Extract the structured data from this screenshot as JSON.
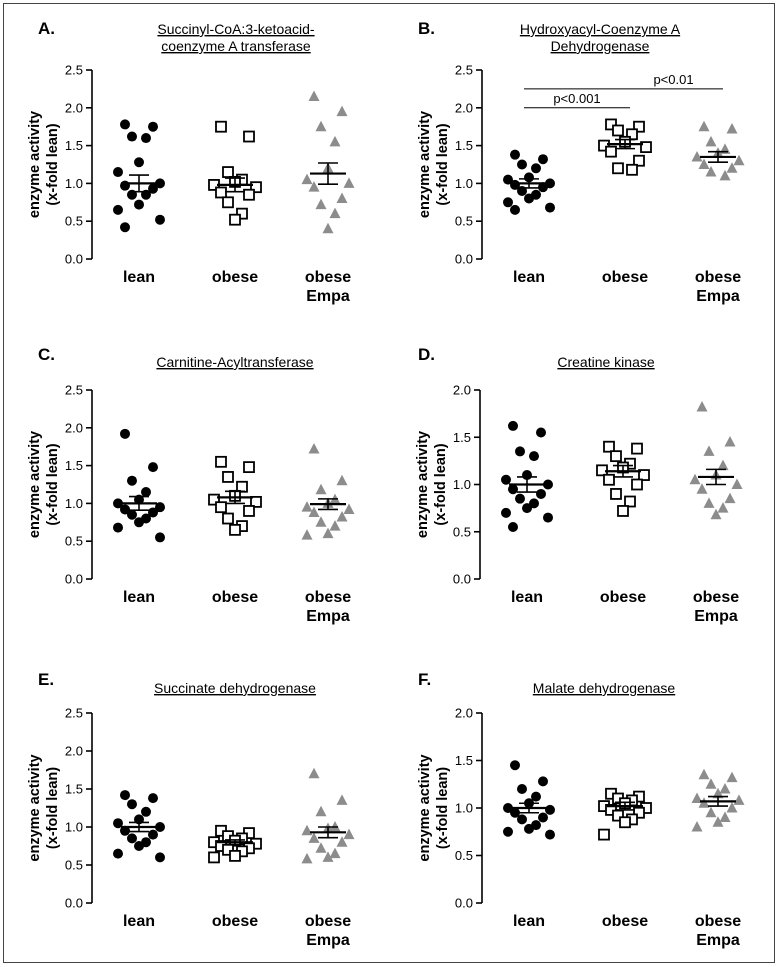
{
  "chart_data": [
    {
      "panel": "A.",
      "type": "scatter",
      "title_lines": [
        "Succinyl-CoA:3-ketoacid-",
        "coenzyme A transferase"
      ],
      "ylabel_lines": [
        "enzyme activity",
        "(x-fold lean)"
      ],
      "ylim": [
        0,
        2.5
      ],
      "yticks": [
        "0.0",
        "0.5",
        "1.0",
        "1.5",
        "2.0",
        "2.5"
      ],
      "categories": [
        [
          "lean"
        ],
        [
          "obese"
        ],
        [
          "obese",
          "Empa"
        ]
      ],
      "series": [
        {
          "name": "lean",
          "marker": "circle",
          "mean": 1.0,
          "sem": 0.11,
          "values": [
            1.78,
            1.75,
            1.62,
            1.6,
            1.28,
            1.15,
            1.0,
            0.97,
            0.93,
            0.85,
            0.85,
            0.72,
            0.65,
            0.52,
            0.42
          ]
        },
        {
          "name": "obese",
          "marker": "square",
          "mean": 0.98,
          "sem": 0.09,
          "values": [
            1.75,
            1.62,
            1.15,
            1.05,
            1.02,
            0.98,
            0.95,
            0.88,
            0.85,
            0.75,
            0.6,
            0.52
          ]
        },
        {
          "name": "obese Empa",
          "marker": "triangle",
          "mean": 1.13,
          "sem": 0.14,
          "values": [
            2.15,
            1.95,
            1.75,
            1.55,
            1.2,
            1.05,
            1.0,
            0.95,
            0.8,
            0.72,
            0.6,
            0.4
          ]
        }
      ],
      "significance": []
    },
    {
      "panel": "B.",
      "type": "scatter",
      "title_lines": [
        "Hydroxyacyl-Coenzyme A",
        "Dehydrogenase"
      ],
      "ylabel_lines": [
        "enzyme activity",
        "(x-fold lean)"
      ],
      "ylim": [
        0,
        2.5
      ],
      "yticks": [
        "0.0",
        "0.5",
        "1.0",
        "1.5",
        "2.0",
        "2.5"
      ],
      "categories": [
        [
          "lean"
        ],
        [
          "obese"
        ],
        [
          "obese",
          "Empa"
        ]
      ],
      "series": [
        {
          "name": "lean",
          "marker": "circle",
          "mean": 1.0,
          "sem": 0.06,
          "values": [
            1.38,
            1.32,
            1.25,
            1.2,
            1.08,
            1.05,
            1.0,
            0.98,
            0.95,
            0.9,
            0.85,
            0.8,
            0.75,
            0.68,
            0.65
          ]
        },
        {
          "name": "obese",
          "marker": "square",
          "mean": 1.52,
          "sem": 0.06,
          "values": [
            1.78,
            1.75,
            1.7,
            1.65,
            1.55,
            1.5,
            1.48,
            1.42,
            1.3,
            1.2,
            1.18
          ]
        },
        {
          "name": "obese Empa",
          "marker": "triangle",
          "mean": 1.35,
          "sem": 0.07,
          "values": [
            1.75,
            1.72,
            1.55,
            1.45,
            1.4,
            1.35,
            1.3,
            1.25,
            1.2,
            1.15,
            1.1
          ]
        }
      ],
      "significance": [
        {
          "from": 0,
          "to": 1,
          "label": "p<0.001",
          "y": 2.0
        },
        {
          "from": 0,
          "to": 2,
          "label": "p<0.01",
          "y": 2.25
        }
      ]
    },
    {
      "panel": "C.",
      "type": "scatter",
      "title_lines": [
        "Carnitine-Acyltransferase"
      ],
      "ylabel_lines": [
        "enzyme activity",
        "(x-fold lean)"
      ],
      "ylim": [
        0,
        2.5
      ],
      "yticks": [
        "0.0",
        "0.5",
        "1.0",
        "1.5",
        "2.0",
        "2.5"
      ],
      "categories": [
        [
          "lean"
        ],
        [
          "obese"
        ],
        [
          "obese",
          "Empa"
        ]
      ],
      "series": [
        {
          "name": "lean",
          "marker": "circle",
          "mean": 1.0,
          "sem": 0.09,
          "values": [
            1.92,
            1.48,
            1.3,
            1.15,
            1.05,
            1.0,
            0.95,
            0.92,
            0.88,
            0.85,
            0.8,
            0.75,
            0.68,
            0.55
          ]
        },
        {
          "name": "obese",
          "marker": "square",
          "mean": 1.08,
          "sem": 0.08,
          "values": [
            1.55,
            1.48,
            1.35,
            1.22,
            1.1,
            1.05,
            1.02,
            0.95,
            0.9,
            0.8,
            0.7,
            0.65
          ]
        },
        {
          "name": "obese Empa",
          "marker": "triangle",
          "mean": 0.99,
          "sem": 0.07,
          "values": [
            1.72,
            1.3,
            1.18,
            1.05,
            1.0,
            0.95,
            0.92,
            0.88,
            0.82,
            0.75,
            0.7,
            0.6,
            0.58
          ]
        }
      ],
      "significance": []
    },
    {
      "panel": "D.",
      "type": "scatter",
      "title_lines": [
        "Creatine kinase"
      ],
      "ylabel_lines": [
        "enzyme activity",
        "(x-fold lean)"
      ],
      "ylim": [
        0,
        2.0
      ],
      "yticks": [
        "0.0",
        "0.5",
        "1.0",
        "1.5",
        "2.0"
      ],
      "categories": [
        [
          "lean"
        ],
        [
          "obese"
        ],
        [
          "obese",
          "Empa"
        ]
      ],
      "series": [
        {
          "name": "lean",
          "marker": "circle",
          "mean": 1.0,
          "sem": 0.08,
          "values": [
            1.62,
            1.55,
            1.35,
            1.3,
            1.1,
            1.05,
            1.0,
            0.95,
            0.9,
            0.85,
            0.8,
            0.75,
            0.7,
            0.65,
            0.55
          ]
        },
        {
          "name": "obese",
          "marker": "square",
          "mean": 1.14,
          "sem": 0.06,
          "values": [
            1.4,
            1.38,
            1.3,
            1.22,
            1.18,
            1.15,
            1.1,
            1.05,
            1.0,
            0.9,
            0.82,
            0.72
          ]
        },
        {
          "name": "obese Empa",
          "marker": "triangle",
          "mean": 1.08,
          "sem": 0.08,
          "values": [
            1.82,
            1.45,
            1.35,
            1.2,
            1.1,
            1.05,
            1.0,
            0.95,
            0.85,
            0.8,
            0.75,
            0.68
          ]
        }
      ],
      "significance": []
    },
    {
      "panel": "E.",
      "type": "scatter",
      "title_lines": [
        "Succinate dehydrogenase"
      ],
      "ylabel_lines": [
        "enzyme activity",
        "(x-fold lean)"
      ],
      "ylim": [
        0,
        2.5
      ],
      "yticks": [
        "0.0",
        "0.5",
        "1.0",
        "1.5",
        "2.0",
        "2.5"
      ],
      "categories": [
        [
          "lean"
        ],
        [
          "obese"
        ],
        [
          "obese",
          "Empa"
        ]
      ],
      "series": [
        {
          "name": "lean",
          "marker": "circle",
          "mean": 1.0,
          "sem": 0.06,
          "values": [
            1.42,
            1.38,
            1.3,
            1.2,
            1.1,
            1.05,
            1.0,
            0.95,
            0.9,
            0.85,
            0.8,
            0.75,
            0.65,
            0.6
          ]
        },
        {
          "name": "obese",
          "marker": "square",
          "mean": 0.8,
          "sem": 0.03,
          "values": [
            0.95,
            0.92,
            0.88,
            0.85,
            0.82,
            0.8,
            0.78,
            0.75,
            0.72,
            0.7,
            0.68,
            0.62,
            0.6
          ]
        },
        {
          "name": "obese Empa",
          "marker": "triangle",
          "mean": 0.93,
          "sem": 0.07,
          "values": [
            1.7,
            1.35,
            1.2,
            1.0,
            0.98,
            0.95,
            0.9,
            0.85,
            0.8,
            0.72,
            0.65,
            0.6,
            0.58
          ]
        }
      ],
      "significance": []
    },
    {
      "panel": "F.",
      "type": "scatter",
      "title_lines": [
        "Malate dehydrogenase"
      ],
      "ylabel_lines": [
        "enzyme activity",
        "(x-fold lean)"
      ],
      "ylim": [
        0,
        2.0
      ],
      "yticks": [
        "0.0",
        "0.5",
        "1.0",
        "1.5",
        "2.0"
      ],
      "categories": [
        [
          "lean"
        ],
        [
          "obese"
        ],
        [
          "obese",
          "Empa"
        ]
      ],
      "series": [
        {
          "name": "lean",
          "marker": "circle",
          "mean": 1.0,
          "sem": 0.05,
          "values": [
            1.45,
            1.28,
            1.2,
            1.12,
            1.05,
            1.0,
            0.98,
            0.95,
            0.9,
            0.88,
            0.82,
            0.78,
            0.75,
            0.72
          ]
        },
        {
          "name": "obese",
          "marker": "square",
          "mean": 1.02,
          "sem": 0.04,
          "values": [
            1.15,
            1.12,
            1.1,
            1.08,
            1.05,
            1.02,
            1.0,
            0.98,
            0.95,
            0.92,
            0.88,
            0.85,
            0.72
          ]
        },
        {
          "name": "obese Empa",
          "marker": "triangle",
          "mean": 1.07,
          "sem": 0.05,
          "values": [
            1.35,
            1.32,
            1.25,
            1.2,
            1.15,
            1.1,
            1.08,
            1.05,
            1.0,
            0.95,
            0.9,
            0.85,
            0.8
          ]
        }
      ],
      "significance": []
    }
  ]
}
